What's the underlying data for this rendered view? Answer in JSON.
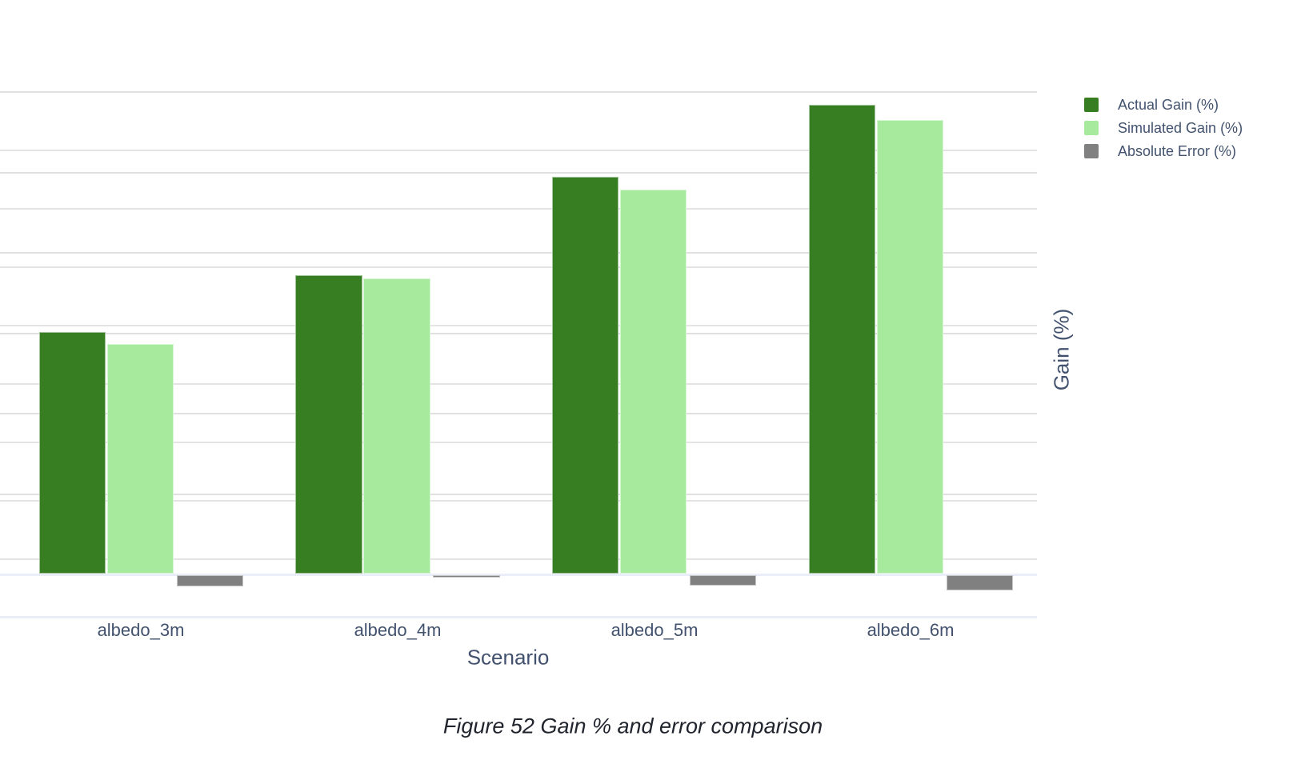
{
  "figure": {
    "caption": "Figure 52 Gain % and error comparison"
  },
  "chart_data": {
    "type": "bar",
    "title": "",
    "xlabel": "Scenario",
    "ylabel": "Gain (%)",
    "categories": [
      "albedo_3m",
      "albedo_4m",
      "albedo_5m",
      "albedo_6m"
    ],
    "series": [
      {
        "name": "Actual Gain (%)",
        "color": "#377d22",
        "values": [
          30.1,
          37.1,
          49.4,
          58.3
        ],
        "direction": "up"
      },
      {
        "name": "Simulated Gain (%)",
        "color": "#a7ea9e",
        "values": [
          28.6,
          36.7,
          47.8,
          56.4
        ],
        "direction": "up"
      },
      {
        "name": "Absolute Error (%)",
        "color": "#808080",
        "values": [
          1.4,
          0.3,
          1.35,
          1.9
        ],
        "direction": "down"
      }
    ],
    "values_estimated_from_gridlines": true,
    "y_axis": {
      "zero_at_bar_base": true,
      "major_gridline_unit": 10,
      "top_gridline_value": 60,
      "tick_labels_visible": false
    },
    "y2_axis": {
      "gridline_count": 9,
      "tick_labels_visible": false
    },
    "legend_position": "top-right",
    "grid": "horizontal"
  }
}
